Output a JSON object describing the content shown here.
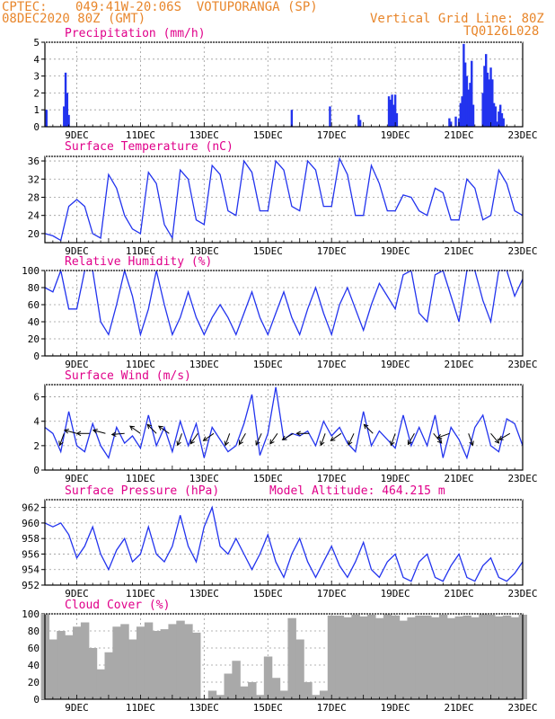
{
  "header": {
    "source": "CPTEC:",
    "location": "049:41W-20:06S  VOTUPORANGA (SP)",
    "run": "08DEC2020 80Z (GMT)",
    "grid_note": "Vertical Grid Line: 80Z",
    "code": "TQ0126L028"
  },
  "day_ticks": [
    "9DEC",
    "11DEC",
    "13DEC",
    "15DEC",
    "17DEC",
    "19DEC",
    "21DEC",
    "23DEC"
  ],
  "model_altitude": "Model Altitude: 464.215 m",
  "colors": {
    "header": "#e8862b",
    "title": "#e0008a",
    "series": "#2233ee",
    "cloud": "#a9a9a9",
    "grid": "#9a9a9a"
  },
  "chart_data": [
    {
      "type": "bar",
      "title": "Precipitation (mm/h)",
      "ylim": [
        0,
        5
      ],
      "yticks": [
        0,
        1,
        2,
        3,
        4,
        5
      ],
      "x_unit": "day offset from 08DEC 00Z",
      "x": [
        0.05,
        0.6,
        0.65,
        0.7,
        0.75,
        7.75,
        8.95,
        9.85,
        9.9,
        10.8,
        10.85,
        10.9,
        10.95,
        11.0,
        11.05,
        12.7,
        12.75,
        12.9,
        13.0,
        13.05,
        13.1,
        13.15,
        13.2,
        13.25,
        13.3,
        13.35,
        13.4,
        13.45,
        13.75,
        13.8,
        13.85,
        13.9,
        13.95,
        14.0,
        14.05,
        14.1,
        14.15,
        14.2,
        14.25,
        14.3,
        14.35,
        14.4
      ],
      "values": [
        1.0,
        1.2,
        3.2,
        2.0,
        0.7,
        1.0,
        1.2,
        0.7,
        0.4,
        1.8,
        1.6,
        1.9,
        1.3,
        1.9,
        0.8,
        0.5,
        0.3,
        0.6,
        0.5,
        1.4,
        1.8,
        4.9,
        3.8,
        3.0,
        2.2,
        2.6,
        3.9,
        1.3,
        2.0,
        3.6,
        4.3,
        3.2,
        2.8,
        3.5,
        2.8,
        1.4,
        1.2,
        0.3,
        0.9,
        1.3,
        0.8,
        0.5
      ]
    },
    {
      "type": "line",
      "title": "Surface Temperature (nC)",
      "ylim": [
        18,
        37
      ],
      "yticks": [
        20,
        24,
        28,
        32,
        36
      ],
      "x": [
        0.0,
        0.25,
        0.5,
        0.75,
        1.0,
        1.25,
        1.5,
        1.75,
        2.0,
        2.25,
        2.5,
        2.75,
        3.0,
        3.25,
        3.5,
        3.75,
        4.0,
        4.25,
        4.5,
        4.75,
        5.0,
        5.25,
        5.5,
        5.75,
        6.0,
        6.25,
        6.5,
        6.75,
        7.0,
        7.25,
        7.5,
        7.75,
        8.0,
        8.25,
        8.5,
        8.75,
        9.0,
        9.25,
        9.5,
        9.75,
        10.0,
        10.25,
        10.5,
        10.75,
        11.0,
        11.25,
        11.5,
        11.75,
        12.0,
        12.25,
        12.5,
        12.75,
        13.0,
        13.25,
        13.5,
        13.75,
        14.0,
        14.25,
        14.5,
        14.75,
        15.0
      ],
      "values": [
        20,
        19.5,
        18.5,
        26,
        27.5,
        26,
        20,
        19,
        33,
        30,
        24,
        21,
        20,
        33.5,
        31,
        22,
        19,
        34,
        32,
        23,
        22,
        35,
        33,
        25,
        24,
        36,
        33.5,
        25,
        25,
        36,
        34,
        26,
        25,
        36,
        34,
        26,
        26,
        36.5,
        33,
        24,
        24,
        35,
        31,
        25,
        25,
        28.5,
        28,
        25,
        24,
        30,
        29,
        23,
        23,
        32,
        30,
        23,
        24,
        34,
        31,
        25,
        24
      ]
    },
    {
      "type": "line",
      "title": "Relative Humidity (%)",
      "ylim": [
        0,
        100
      ],
      "yticks": [
        0,
        20,
        40,
        60,
        80,
        100
      ],
      "x": [
        0.0,
        0.25,
        0.5,
        0.75,
        1.0,
        1.25,
        1.5,
        1.75,
        2.0,
        2.25,
        2.5,
        2.75,
        3.0,
        3.25,
        3.5,
        3.75,
        4.0,
        4.25,
        4.5,
        4.75,
        5.0,
        5.25,
        5.5,
        5.75,
        6.0,
        6.25,
        6.5,
        6.75,
        7.0,
        7.25,
        7.5,
        7.75,
        8.0,
        8.25,
        8.5,
        8.75,
        9.0,
        9.25,
        9.5,
        9.75,
        10.0,
        10.25,
        10.5,
        10.75,
        11.0,
        11.25,
        11.5,
        11.75,
        12.0,
        12.25,
        12.5,
        12.75,
        13.0,
        13.25,
        13.5,
        13.75,
        14.0,
        14.25,
        14.5,
        14.75,
        15.0
      ],
      "values": [
        80,
        75,
        100,
        55,
        55,
        100,
        100,
        40,
        25,
        60,
        100,
        70,
        25,
        55,
        100,
        60,
        25,
        45,
        75,
        45,
        25,
        45,
        60,
        45,
        25,
        50,
        75,
        45,
        25,
        50,
        75,
        45,
        25,
        55,
        80,
        50,
        25,
        60,
        80,
        55,
        30,
        60,
        85,
        70,
        55,
        95,
        100,
        50,
        40,
        95,
        100,
        70,
        40,
        100,
        100,
        65,
        40,
        100,
        100,
        70,
        90
      ]
    },
    {
      "type": "line",
      "title": "Surface Wind (m/s)",
      "ylim": [
        0,
        7
      ],
      "yticks": [
        0,
        2,
        4,
        6
      ],
      "x": [
        0.0,
        0.25,
        0.5,
        0.75,
        1.0,
        1.25,
        1.5,
        1.75,
        2.0,
        2.25,
        2.5,
        2.75,
        3.0,
        3.25,
        3.5,
        3.75,
        4.0,
        4.25,
        4.5,
        4.75,
        5.0,
        5.25,
        5.5,
        5.75,
        6.0,
        6.25,
        6.5,
        6.75,
        7.0,
        7.25,
        7.5,
        7.75,
        8.0,
        8.25,
        8.5,
        8.75,
        9.0,
        9.25,
        9.5,
        9.75,
        10.0,
        10.25,
        10.5,
        10.75,
        11.0,
        11.25,
        11.5,
        11.75,
        12.0,
        12.25,
        12.5,
        12.75,
        13.0,
        13.25,
        13.5,
        13.75,
        14.0,
        14.25,
        14.5,
        14.75,
        15.0
      ],
      "values": [
        3.5,
        3.0,
        1.5,
        4.8,
        2.0,
        1.5,
        3.8,
        2.0,
        1.0,
        3.5,
        2.2,
        2.8,
        1.8,
        4.5,
        2.0,
        3.5,
        1.5,
        4.0,
        2.0,
        3.8,
        1.0,
        3.5,
        2.5,
        1.5,
        2.0,
        3.8,
        6.2,
        1.2,
        3.0,
        6.8,
        2.5,
        3.0,
        2.8,
        3.2,
        2.0,
        4.0,
        2.8,
        3.5,
        2.2,
        1.5,
        4.8,
        2.0,
        3.2,
        2.5,
        1.8,
        4.5,
        2.0,
        3.5,
        2.0,
        4.5,
        1.0,
        3.5,
        2.5,
        1.0,
        3.5,
        4.5,
        2.0,
        1.5,
        4.2,
        3.8,
        2.0
      ],
      "vectors": [
        {
          "x": 0.6,
          "dir": 200
        },
        {
          "x": 1.0,
          "dir": 285
        },
        {
          "x": 1.4,
          "dir": 270
        },
        {
          "x": 1.9,
          "dir": 285
        },
        {
          "x": 2.5,
          "dir": 265
        },
        {
          "x": 3.0,
          "dir": 305
        },
        {
          "x": 3.5,
          "dir": 315
        },
        {
          "x": 3.9,
          "dir": 305
        },
        {
          "x": 4.3,
          "dir": 200
        },
        {
          "x": 4.8,
          "dir": 215
        },
        {
          "x": 5.3,
          "dir": 235
        },
        {
          "x": 5.8,
          "dir": 200
        },
        {
          "x": 6.3,
          "dir": 210
        },
        {
          "x": 6.8,
          "dir": 205
        },
        {
          "x": 7.3,
          "dir": 215
        },
        {
          "x": 7.8,
          "dir": 240
        },
        {
          "x": 8.3,
          "dir": 270
        },
        {
          "x": 8.8,
          "dir": 200
        },
        {
          "x": 9.3,
          "dir": 235
        },
        {
          "x": 9.7,
          "dir": 205
        },
        {
          "x": 10.3,
          "dir": 315
        },
        {
          "x": 11.0,
          "dir": 200
        },
        {
          "x": 11.6,
          "dir": 210
        },
        {
          "x": 12.2,
          "dir": 140
        },
        {
          "x": 12.7,
          "dir": 250
        },
        {
          "x": 13.3,
          "dir": 160
        },
        {
          "x": 14.0,
          "dir": 140
        },
        {
          "x": 14.6,
          "dir": 240
        }
      ]
    },
    {
      "type": "line",
      "title": "Surface Pressure (hPa)",
      "ylim": [
        952,
        963
      ],
      "yticks": [
        952,
        954,
        956,
        958,
        960,
        962
      ],
      "x": [
        0.0,
        0.25,
        0.5,
        0.75,
        1.0,
        1.25,
        1.5,
        1.75,
        2.0,
        2.25,
        2.5,
        2.75,
        3.0,
        3.25,
        3.5,
        3.75,
        4.0,
        4.25,
        4.5,
        4.75,
        5.0,
        5.25,
        5.5,
        5.75,
        6.0,
        6.25,
        6.5,
        6.75,
        7.0,
        7.25,
        7.5,
        7.75,
        8.0,
        8.25,
        8.5,
        8.75,
        9.0,
        9.25,
        9.5,
        9.75,
        10.0,
        10.25,
        10.5,
        10.75,
        11.0,
        11.25,
        11.5,
        11.75,
        12.0,
        12.25,
        12.5,
        12.75,
        13.0,
        13.25,
        13.5,
        13.75,
        14.0,
        14.25,
        14.5,
        14.75,
        15.0
      ],
      "values": [
        960,
        959.5,
        960,
        958.5,
        955.5,
        957,
        959.5,
        956,
        954,
        956.5,
        958,
        955,
        956,
        959.5,
        956,
        955,
        957,
        961,
        957,
        955,
        959.5,
        962,
        957,
        956,
        958,
        956,
        954,
        956,
        958.5,
        955,
        953,
        956,
        958,
        955,
        953,
        955,
        957,
        954.5,
        953,
        955,
        957.5,
        954,
        953,
        955,
        956,
        953,
        952.5,
        955,
        956,
        953,
        952.5,
        954.5,
        956,
        953,
        952.5,
        954.5,
        955.5,
        953,
        952.5,
        953.5,
        955
      ]
    },
    {
      "type": "area",
      "title": "Cloud Cover (%)",
      "ylim": [
        0,
        100
      ],
      "yticks": [
        0,
        20,
        40,
        60,
        80,
        100
      ],
      "x": [
        0.0,
        0.25,
        0.5,
        0.75,
        1.0,
        1.25,
        1.5,
        1.75,
        2.0,
        2.25,
        2.5,
        2.75,
        3.0,
        3.25,
        3.5,
        3.75,
        4.0,
        4.25,
        4.5,
        4.75,
        5.0,
        5.25,
        5.5,
        5.75,
        6.0,
        6.25,
        6.5,
        6.75,
        7.0,
        7.25,
        7.5,
        7.75,
        8.0,
        8.25,
        8.5,
        8.75,
        9.0,
        9.25,
        9.5,
        9.75,
        10.0,
        10.25,
        10.5,
        10.75,
        11.0,
        11.25,
        11.5,
        11.75,
        12.0,
        12.25,
        12.5,
        12.75,
        13.0,
        13.25,
        13.5,
        13.75,
        14.0,
        14.25,
        14.5,
        14.75,
        15.0
      ],
      "values": [
        100,
        70,
        80,
        75,
        85,
        90,
        60,
        35,
        55,
        85,
        88,
        70,
        85,
        90,
        80,
        82,
        88,
        92,
        88,
        78,
        0,
        10,
        5,
        30,
        45,
        15,
        20,
        5,
        50,
        25,
        10,
        95,
        70,
        20,
        5,
        10,
        98,
        98,
        96,
        99,
        97,
        99,
        95,
        100,
        98,
        92,
        96,
        98,
        98,
        96,
        99,
        95,
        97,
        98,
        96,
        100,
        99,
        97,
        98,
        96,
        99
      ]
    }
  ]
}
